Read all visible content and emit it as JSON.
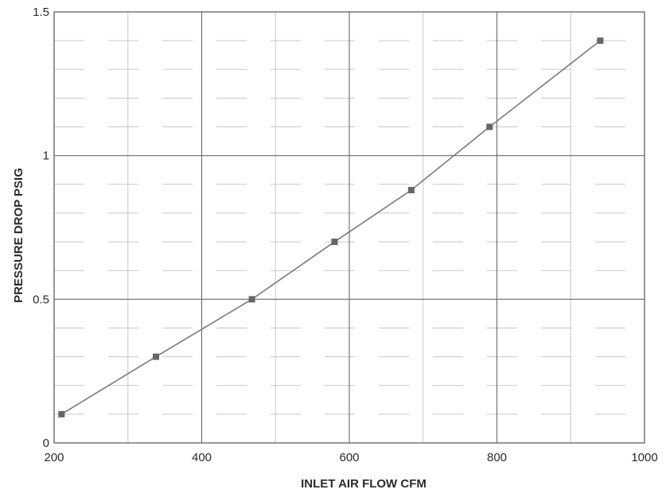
{
  "chart_data": {
    "type": "line",
    "title": "",
    "xlabel": "INLET AIR FLOW CFM",
    "ylabel": "PRESSURE DROP PSIG",
    "xlim": [
      200,
      1000
    ],
    "ylim": [
      0,
      1.5
    ],
    "x_ticks": [
      "200",
      "400",
      "600",
      "800",
      "1000"
    ],
    "y_ticks": [
      "0",
      "0.5",
      "1",
      "1.5"
    ],
    "grid": true,
    "legend": "none",
    "series": [
      {
        "x": [
          210,
          338,
          468,
          580,
          684,
          790,
          940
        ],
        "y": [
          0.1,
          0.3,
          0.5,
          0.7,
          0.88,
          1.1,
          1.4
        ],
        "color": "#7a7a7a",
        "marker": "square",
        "marker_color": "#666666"
      }
    ]
  }
}
